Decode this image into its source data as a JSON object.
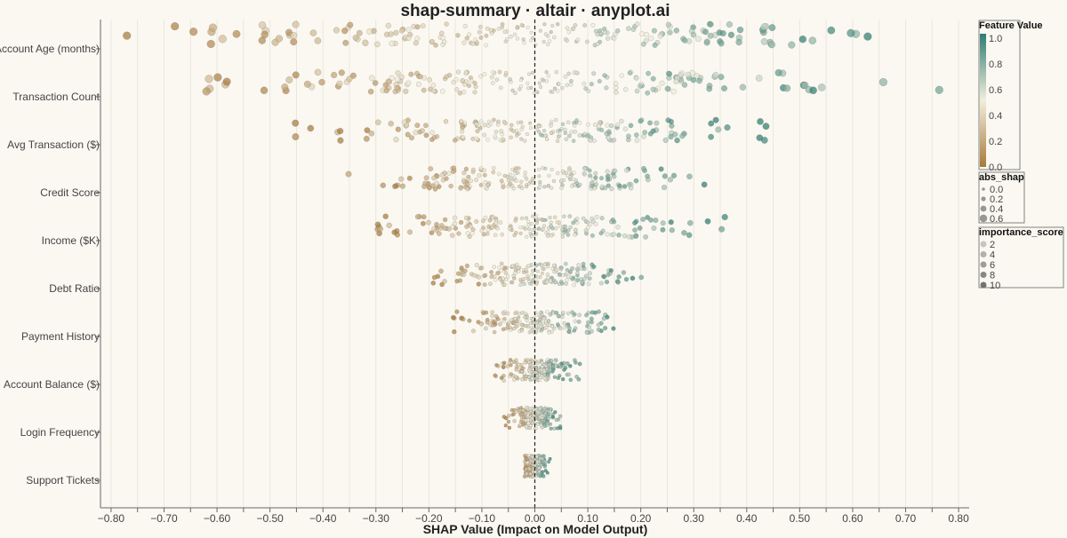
{
  "chart_data": {
    "type": "scatter",
    "title": "shap-summary · altair · anyplot.ai",
    "xlabel": "SHAP Value (Impact on Model Output)",
    "ylabel": "",
    "xlim": [
      -0.82,
      0.82
    ],
    "x_ticks": [
      "−0.80",
      "−0.70",
      "−0.60",
      "−0.50",
      "−0.40",
      "−0.30",
      "−0.20",
      "−0.10",
      "0.00",
      "0.10",
      "0.20",
      "0.30",
      "0.40",
      "0.50",
      "0.60",
      "0.70",
      "0.80"
    ],
    "features": [
      {
        "name": "Account Age (months)",
        "min": -0.78,
        "max": 0.7
      },
      {
        "name": "Transaction Count",
        "min": -0.62,
        "max": 0.77
      },
      {
        "name": "Avg Transaction ($)",
        "min": -0.46,
        "max": 0.44
      },
      {
        "name": "Credit Score",
        "min": -0.36,
        "max": 0.34
      },
      {
        "name": "Income ($K)",
        "min": -0.3,
        "max": 0.36
      },
      {
        "name": "Debt Ratio",
        "min": -0.2,
        "max": 0.22
      },
      {
        "name": "Payment History",
        "min": -0.17,
        "max": 0.15
      },
      {
        "name": "Account Balance ($)",
        "min": -0.08,
        "max": 0.09
      },
      {
        "name": "Login Frequency",
        "min": -0.06,
        "max": 0.05
      },
      {
        "name": "Support Tickets",
        "min": -0.02,
        "max": 0.03
      }
    ],
    "zero_line": 0,
    "grid": true,
    "legend_placement": "right",
    "legends": {
      "color": {
        "title": "Feature Value",
        "ticks": [
          "1.0",
          "0.8",
          "0.6",
          "0.4",
          "0.2",
          "0.0"
        ],
        "low_color": "#A87A3C",
        "mid_color": "#F2EEDC",
        "high_color": "#2E7D72"
      },
      "size": {
        "title": "abs_shap",
        "labels": [
          "0.0",
          "0.2",
          "0.4",
          "0.6"
        ]
      },
      "opacity": {
        "title": "importance_score",
        "labels": [
          "2",
          "4",
          "6",
          "8",
          "10"
        ]
      }
    }
  }
}
